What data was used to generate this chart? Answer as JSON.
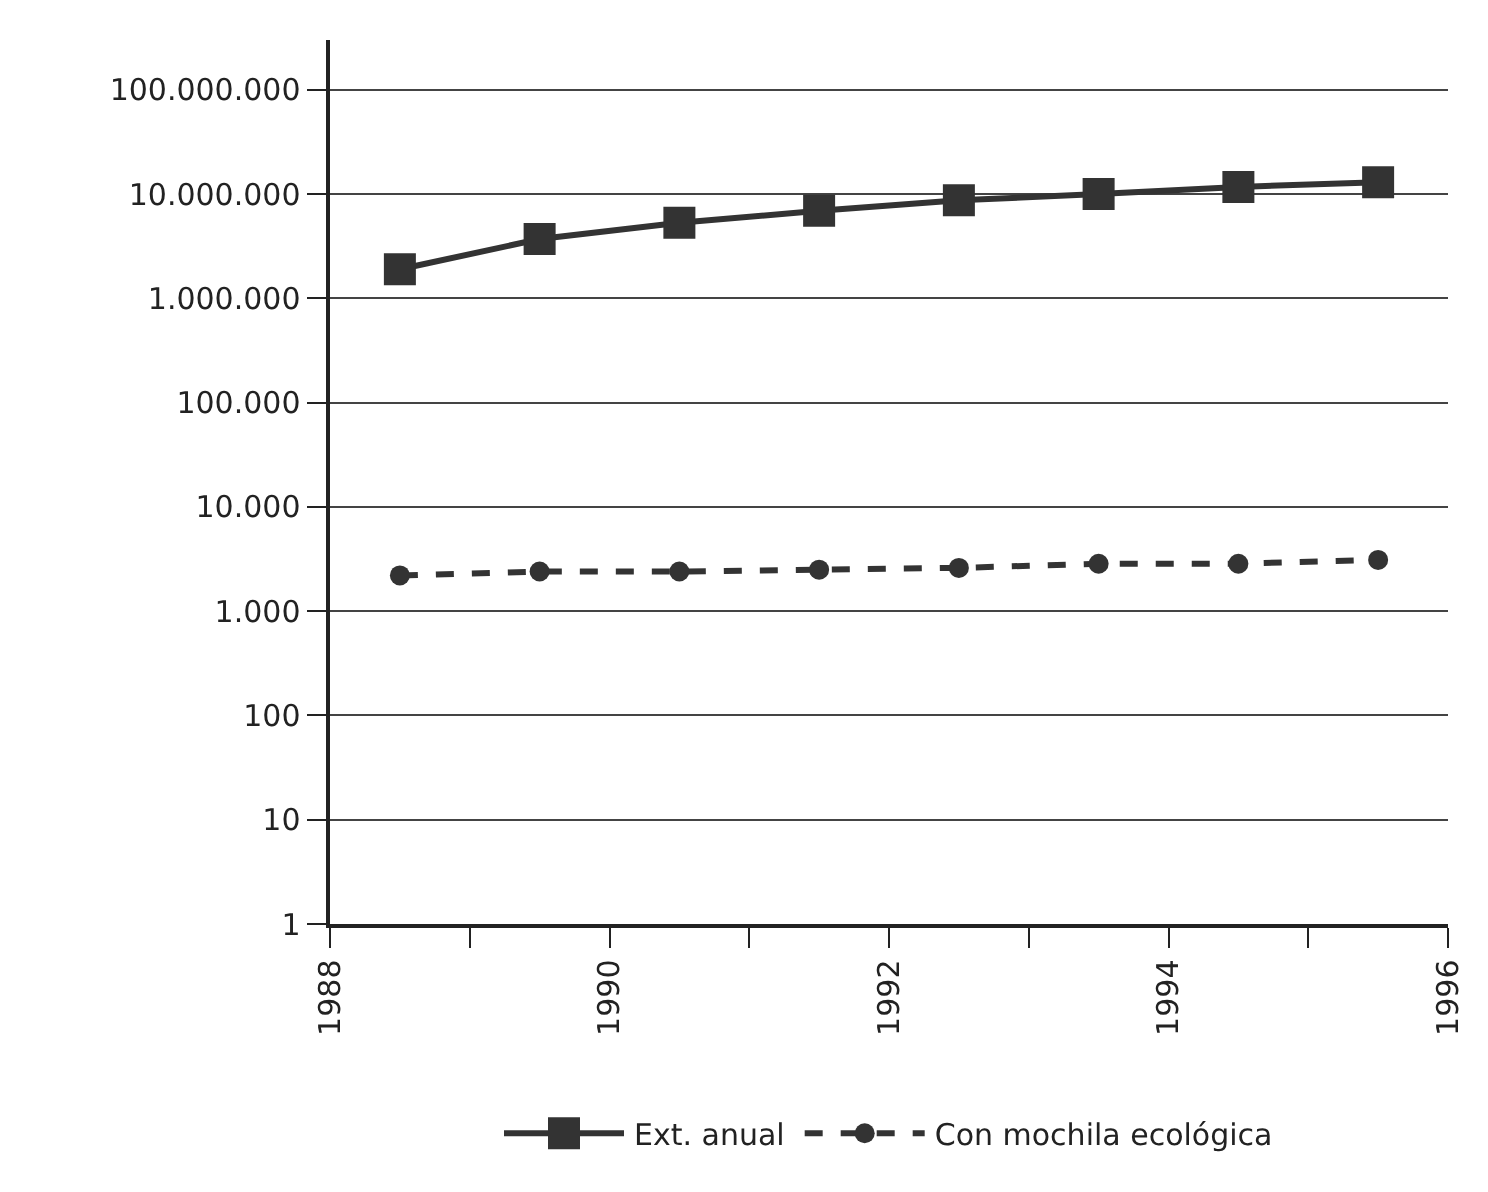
{
  "chart_data": {
    "type": "line",
    "x": [
      1988.5,
      1989.5,
      1990.5,
      1991.5,
      1992.5,
      1993.5,
      1994.5,
      1995.5
    ],
    "series": [
      {
        "name": "Ext. anual",
        "color": "#333333",
        "marker": "square",
        "line_style": "solid",
        "values": [
          1900000,
          3700000,
          5300000,
          6900000,
          8700000,
          10000000,
          11700000,
          13000000
        ]
      },
      {
        "name": "Con mochila ecológica",
        "color": "#333333",
        "marker": "circle",
        "line_style": "dashed",
        "values": [
          2200,
          2400,
          2400,
          2500,
          2600,
          2850,
          2850,
          3100
        ]
      }
    ],
    "log": "y",
    "xlim": [
      1988,
      1996
    ],
    "xticks": [
      1988,
      {
        "value": 1989,
        "label": null
      },
      1990,
      {
        "value": 1991,
        "label": null
      },
      1992,
      {
        "value": 1993,
        "label": null
      },
      1994,
      {
        "value": 1995,
        "label": null
      },
      1996
    ],
    "ylim": [
      1,
      300000000
    ],
    "yticks": [
      1,
      10,
      100,
      {
        "value": 1000,
        "label": "1.000"
      },
      {
        "value": 10000,
        "label": "10.000"
      },
      {
        "value": 100000,
        "label": "100.000"
      },
      {
        "value": 1000000,
        "label": "1.000.000"
      },
      {
        "value": 10000000,
        "label": "10.000.000"
      },
      {
        "value": 100000000,
        "label": "100.000.000"
      }
    ],
    "grid": "y",
    "legend": "bottom"
  }
}
